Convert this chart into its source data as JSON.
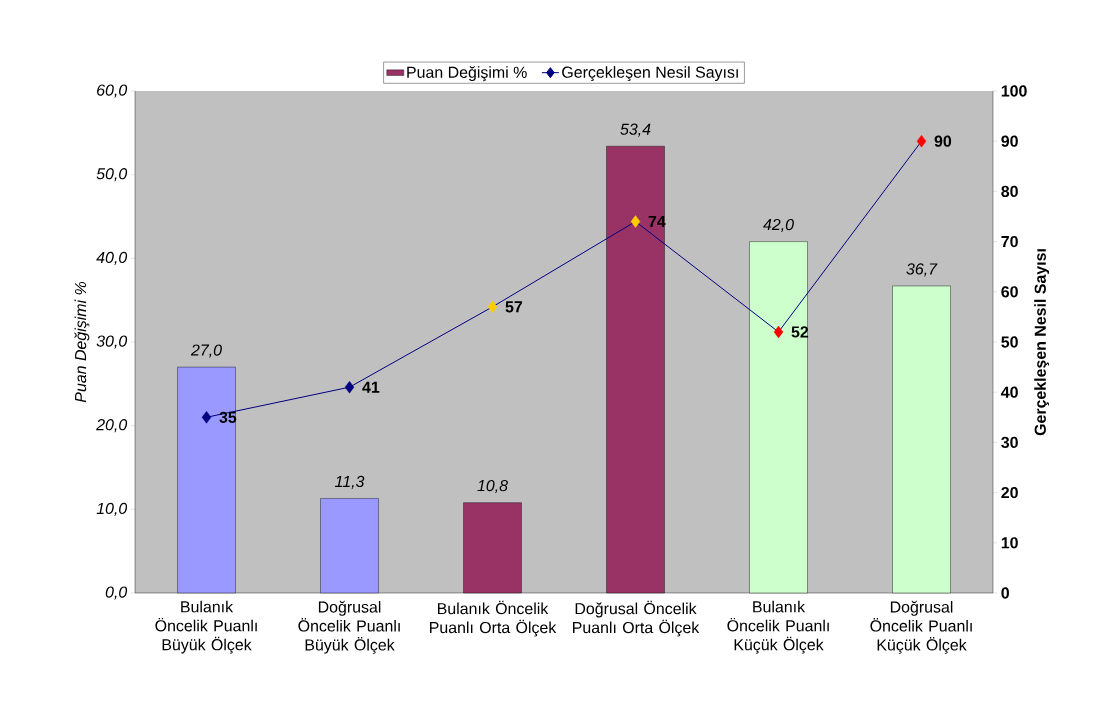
{
  "chart_data": {
    "type": "bar",
    "categories": [
      "Bulanık Öncelik Puanlı Büyük Ölçek",
      "Doğrusal Öncelik Puanlı Büyük Ölçek",
      "Bulanık Öncelik Puanlı Orta Ölçek",
      "Doğrusal Öncelik Puanlı Orta Ölçek",
      "Bulanık Öncelik Puanlı Küçük Ölçek",
      "Doğrusal Öncelik Puanlı Küçük Ölçek"
    ],
    "legend": "top",
    "ylabel": "Puan Değişimi %",
    "y2label": "Gerçekleşen Nesil Sayısı",
    "ylim": [
      0,
      60
    ],
    "yticks": [
      {
        "value": 0,
        "label": "0,0"
      },
      {
        "value": 10,
        "label": "10,0"
      },
      {
        "value": 20,
        "label": "20,0"
      },
      {
        "value": 30,
        "label": "30,0"
      },
      {
        "value": 40,
        "label": "40,0"
      },
      {
        "value": 50,
        "label": "50,0"
      },
      {
        "value": 60,
        "label": "60,0"
      }
    ],
    "y2lim": [
      0,
      100
    ],
    "y2ticks": [
      0,
      10,
      20,
      30,
      40,
      50,
      60,
      70,
      80,
      90,
      100
    ],
    "series": [
      {
        "name": "Puan Değişimi %",
        "color": "#993366",
        "colors": [
          "#9999ff",
          "#9999ff",
          "#993366",
          "#993366",
          "#ccffcc",
          "#ccffcc"
        ],
        "values": [
          27.0,
          11.3,
          10.8,
          53.4,
          42.0,
          36.7
        ],
        "value_labels": [
          "27,0",
          "11,3",
          "10,8",
          "53,4",
          "42,0",
          "36,7"
        ]
      },
      {
        "name": "Gerçekleşen Nesil Sayısı",
        "type": "line",
        "axis": "y2",
        "color": "#000080",
        "colors": [
          "#000080",
          "#000080",
          "#ffcc00",
          "#ffcc00",
          "#ff0000",
          "#ff0000"
        ],
        "marker": "diamond",
        "line_style": "solid",
        "values": [
          35,
          41,
          57,
          74,
          52,
          90
        ],
        "value_labels": [
          "35",
          "41",
          "57",
          "74",
          "52",
          "90"
        ]
      }
    ]
  }
}
